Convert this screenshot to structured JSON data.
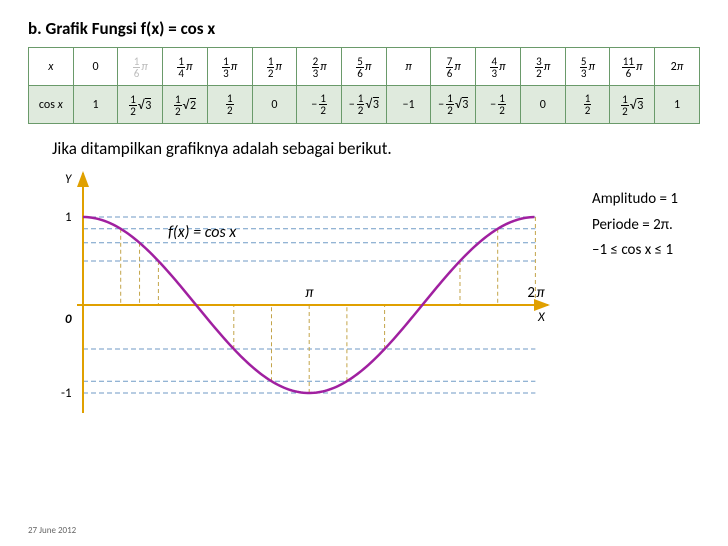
{
  "title": "b. Grafik Fungsi f(x) = cos x",
  "table": {
    "row_x_header": "x",
    "row_cos_header": "cos x",
    "cells_x": [
      "0",
      "1/6π",
      "1/4π",
      "1/3π",
      "1/2π",
      "2/3π",
      "5/6π",
      "π",
      "7/6π",
      "4/3π",
      "3/2π",
      "5/3π",
      "11/6π",
      "2π"
    ],
    "cells_cos": [
      "1",
      "½√3",
      "½√2",
      "½",
      "0",
      "−½",
      "−½√3",
      "−1",
      "−½√3",
      "−½",
      "0",
      "½",
      "½√3",
      "1"
    ]
  },
  "caption": "Jika ditampilkan grafiknya adalah sebagai berikut.",
  "graph": {
    "y_label": "Y",
    "x_label": "X",
    "origin_label": "0",
    "y_ticks": [
      "1",
      "-1"
    ],
    "x_ticks": [
      "π",
      "2π"
    ],
    "function_label": "f(x)  =  cos  x",
    "curve_color": "#a020a0",
    "axis_color": "#e0a000",
    "guide_color": "#6090c0",
    "guide_dash": "5,3",
    "axis_dash_guides_color": "#c0a040",
    "xlim": [
      0,
      6.5
    ],
    "ylim": [
      -1.3,
      1.4
    ],
    "sample_points_x": [
      0,
      0.5236,
      0.7854,
      1.0472,
      1.5708,
      2.0944,
      2.618,
      3.1416,
      3.6652,
      4.1888,
      4.7124,
      5.236,
      5.7596,
      6.2832
    ]
  },
  "annotations": {
    "amplitude": "Amplitudo = 1",
    "period": "Periode = 2π.",
    "range": "–1 ≤ cos x ≤ 1"
  },
  "date": "27 June 2012",
  "colors": {
    "table_header_bg": "#ffffff",
    "table_row_bg": "#dfeadd",
    "table_border": "#6a9a6a"
  }
}
